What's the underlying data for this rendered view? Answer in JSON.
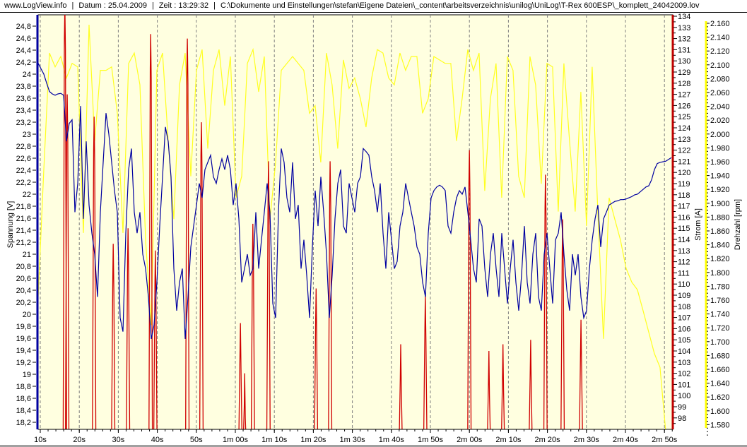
{
  "header": {
    "site": "www.LogView.info",
    "date": "Datum : 25.04.2009",
    "time": "Zeit : 13:29:32",
    "file": "C:\\Dokumente und Einstellungen\\stefan\\Eigene Dateien\\_content\\arbeitsverzeichnis\\unilog\\UniLog\\T-Rex 600ESP\\_komplett_24042009.lov"
  },
  "colors": {
    "voltage": "#0000a0",
    "current": "#d00000",
    "rpm": "#ffff20",
    "plot_bg": "#ffffe0"
  },
  "chart_data": {
    "type": "line",
    "title": "",
    "xlabel": "",
    "x_unit": "s",
    "xlim": [
      9.5,
      172
    ],
    "x_ticks": [
      10,
      20,
      30,
      40,
      50,
      60,
      70,
      80,
      90,
      100,
      110,
      120,
      130,
      140,
      150,
      160,
      170
    ],
    "x_tick_labels": [
      "10s",
      "20s",
      "30s",
      "40s",
      "50s",
      "1m 00s",
      "1m 10s",
      "1m 20s",
      "1m 30s",
      "1m 40s",
      "1m 50s",
      "2m 00s",
      "2m 10s",
      "2m 20s",
      "2m 30s",
      "2m 40s",
      "2m 50s"
    ],
    "grid": "vertical dashed",
    "axes": {
      "left": {
        "label": "Spannung [V]",
        "range": [
          18.1,
          25.0
        ],
        "ticks": [
          "24,8",
          "24,6",
          "24,4",
          "24,2",
          "24",
          "23,8",
          "23,6",
          "23,4",
          "23,2",
          "23",
          "22,8",
          "22,6",
          "22,4",
          "22,2",
          "22",
          "21,8",
          "21,6",
          "21,4",
          "21,2",
          "21",
          "20,8",
          "20,6",
          "20,4",
          "20,2",
          "20",
          "19,8",
          "19,6",
          "19,4",
          "19,2",
          "19",
          "18,8",
          "18,6",
          "18,4",
          "18,2"
        ]
      },
      "right1": {
        "label": "Strom [A]",
        "range": [
          97,
          134
        ],
        "ticks": [
          "134",
          "133",
          "132",
          "131",
          "130",
          "129",
          "128",
          "127",
          "126",
          "125",
          "124",
          "123",
          "122",
          "121",
          "120",
          "119",
          "118",
          "117",
          "116",
          "115",
          "114",
          "113",
          "112",
          "111",
          "110",
          "109",
          "108",
          "107",
          "106",
          "105",
          "104",
          "103",
          "102",
          "101",
          "100",
          "99",
          "98"
        ]
      },
      "right2": {
        "label": "Drehzahl [rpm]",
        "range": [
          1570,
          2175
        ],
        "ticks": [
          "2.160",
          "2.140",
          "2.120",
          "2.100",
          "2.080",
          "2.060",
          "2.040",
          "2.020",
          "2.000",
          "1.980",
          "1.960",
          "1.940",
          "1.920",
          "1.900",
          "1.880",
          "1.860",
          "1.840",
          "1.820",
          "1.800",
          "1.780",
          "1.760",
          "1.740",
          "1.720",
          "1.700",
          "1.680",
          "1.660",
          "1.640",
          "1.620",
          "1.600",
          "1.580"
        ]
      }
    },
    "series": [
      {
        "name": "Spannung",
        "axis": "left",
        "t_start": 9.46,
        "t_step": 0.7246,
        "values": [
          24.18,
          24.09,
          24.0,
          23.85,
          23.71,
          23.67,
          23.65,
          23.67,
          23.68,
          23.65,
          22.88,
          23.18,
          23.24,
          21.7,
          22.18,
          23.47,
          21.59,
          22.88,
          21.82,
          21.35,
          21.0,
          20.29,
          21.7,
          22.53,
          23.35,
          23.0,
          22.53,
          22.06,
          21.7,
          19.94,
          19.71,
          21.35,
          22.41,
          22.76,
          21.7,
          21.35,
          21.7,
          21.0,
          20.76,
          20.29,
          19.59,
          19.82,
          20.53,
          21.47,
          22.29,
          23.12,
          22.88,
          22.29,
          20.76,
          20.06,
          20.53,
          20.76,
          19.59,
          20.29,
          21.12,
          21.47,
          21.82,
          22.18,
          21.94,
          22.41,
          22.53,
          22.65,
          22.29,
          22.18,
          22.41,
          22.59,
          22.41,
          22.65,
          22.41,
          21.82,
          22.18,
          21.59,
          20.53,
          20.76,
          21.0,
          20.65,
          20.76,
          21.7,
          20.76,
          21.24,
          21.7,
          22.18,
          21.7,
          20.18,
          19.94,
          21.7,
          22.76,
          22.53,
          21.94,
          21.7,
          22.53,
          21.59,
          21.82,
          20.76,
          21.24,
          20.65,
          19.94,
          21.12,
          22.06,
          21.47,
          22.29,
          21.7,
          21.0,
          19.94,
          20.65,
          21.59,
          22.18,
          22.41,
          21.47,
          21.35,
          22.18,
          21.94,
          21.7,
          22.18,
          22.29,
          22.76,
          22.71,
          22.65,
          22.29,
          22.06,
          21.7,
          22.18,
          21.35,
          20.76,
          21.7,
          21.24,
          20.76,
          20.88,
          21.47,
          21.7,
          22.18,
          21.94,
          21.7,
          21.47,
          21.12,
          21.0,
          20.53,
          20.29,
          21.35,
          21.94,
          22.06,
          22.12,
          22.15,
          22.12,
          22.06,
          21.47,
          21.35,
          21.7,
          21.94,
          22.06,
          22.0,
          22.12,
          21.7,
          21.24,
          20.76,
          20.53,
          21.59,
          21.47,
          20.76,
          20.29,
          21.0,
          21.35,
          20.76,
          20.29,
          21.35,
          20.76,
          20.18,
          20.76,
          21.24,
          20.53,
          20.06,
          20.65,
          21.47,
          20.53,
          20.18,
          21.0,
          21.35,
          20.29,
          20.06,
          21.0,
          21.35,
          20.76,
          20.18,
          21.24,
          21.35,
          21.7,
          21.0,
          20.41,
          20.06,
          21.0,
          20.65,
          21.0,
          20.29,
          19.94,
          20.06,
          20.76,
          21.24,
          21.59,
          21.82,
          21.12,
          21.59,
          21.7,
          21.82,
          21.85,
          21.88,
          21.89,
          21.91,
          21.91,
          21.92,
          21.94,
          21.96,
          21.99,
          22.0,
          22.04,
          22.08,
          22.12,
          22.14,
          22.24,
          22.41,
          22.51,
          22.53,
          22.54,
          22.55,
          22.58,
          22.61
        ]
      },
      {
        "name": "Drehzahl",
        "axis": "right2",
        "t_start": 9.46,
        "t_step": 1.449,
        "values": [
          1765,
          1949,
          2117,
          2097,
          2112,
          2081,
          2102,
          2097,
          1857,
          2158,
          1990,
          2092,
          2092,
          2097,
          2030,
          1857,
          2102,
          2117,
          2071,
          1847,
          1724,
          2092,
          2117,
          1990,
          1877,
          2071,
          2117,
          1939,
          2092,
          2122,
          1979,
          2092,
          2122,
          2041,
          2112,
          1908,
          1939,
          2102,
          2122,
          2061,
          2112,
          1877,
          1959,
          2092,
          2102,
          2112,
          2102,
          2092,
          2030,
          2041,
          1959,
          2117,
          2071,
          1979,
          2107,
          2066,
          2081,
          2051,
          2010,
          2081,
          2122,
          2117,
          2081,
          2071,
          2117,
          2092,
          2112,
          2112,
          2030,
          2051,
          2112,
          2107,
          2102,
          2102,
          1990,
          2051,
          2122,
          2092,
          2117,
          1918,
          2051,
          2102,
          1908,
          2112,
          2092,
          1939,
          1908,
          2112,
          2071,
          1928,
          2102,
          2097,
          1888,
          2102,
          1990,
          1888,
          2061,
          1867,
          2097,
          1888,
          1704,
          1908,
          1877,
          1847,
          1806,
          1786,
          1775,
          1745,
          1714,
          1683,
          1663,
          1571
        ]
      },
      {
        "name": "Strom",
        "axis": "right1",
        "baseline": 95,
        "spikes": [
          [
            16.3,
            135
          ],
          [
            16.9,
            127
          ],
          [
            23.8,
            125
          ],
          [
            28.7,
            113.6
          ],
          [
            32.5,
            115
          ],
          [
            38.3,
            132.4
          ],
          [
            39.5,
            113
          ],
          [
            47.7,
            132
          ],
          [
            51.3,
            124.5
          ],
          [
            61.3,
            106.5
          ],
          [
            62.4,
            102
          ],
          [
            64.5,
            115.4
          ],
          [
            68.5,
            121
          ],
          [
            80.7,
            109.6
          ],
          [
            84.3,
            121
          ],
          [
            102.4,
            104.6
          ],
          [
            108.7,
            109
          ],
          [
            120.0,
            122
          ],
          [
            125.0,
            104
          ],
          [
            128.6,
            104.6
          ],
          [
            135.7,
            105
          ],
          [
            139.5,
            119.8
          ],
          [
            143.9,
            115.8
          ],
          [
            148.6,
            106.8
          ]
        ]
      }
    ]
  }
}
